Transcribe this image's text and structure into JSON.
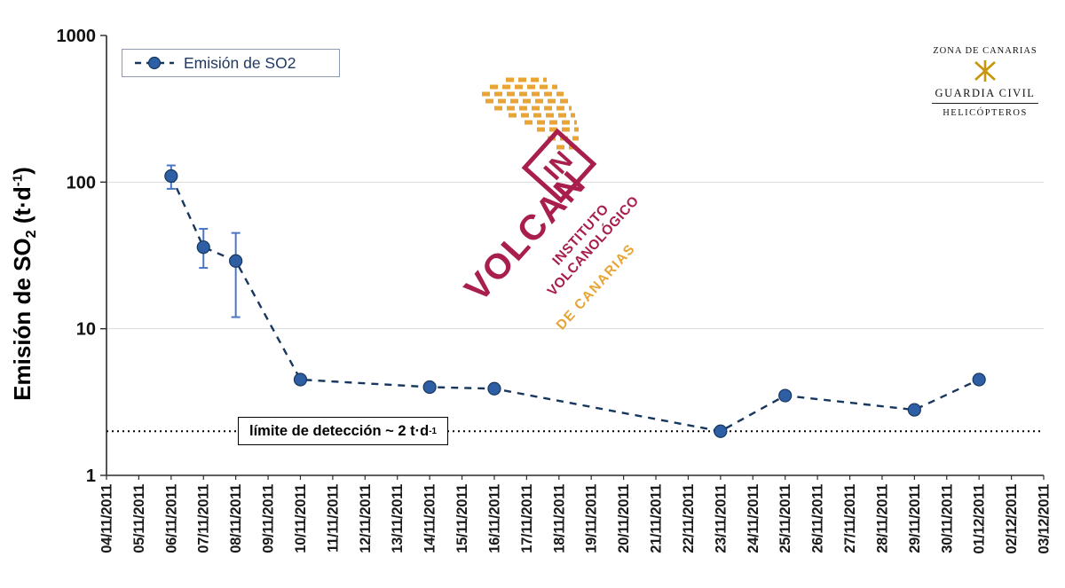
{
  "page": {
    "background": "#ffffff"
  },
  "y_axis": {
    "title_pre": "Emisión de SO",
    "title_sub": "2",
    "title_mid": " (t·d",
    "title_sup": "-1",
    "title_post": ")"
  },
  "legend": {
    "label": "Emisión de SO2"
  },
  "detection": {
    "label_pre": "límite de detección ~ 2 t·d",
    "label_sup": "-1"
  },
  "logo": {
    "in": "IN",
    "volcan": "VOLCAN",
    "inst_line1": "INSTITUTO",
    "inst_line2": "VOLCANOLÓGICO",
    "canarias": "DE CANARIAS",
    "crimson": "#A81E4D",
    "orange": "#E8A435"
  },
  "badge": {
    "zona": "ZONA DE CANARIAS",
    "guardia": "GUARDIA CIVIL",
    "helicopteros": "HELICÓPTEROS",
    "emblem_color": "#C8960C"
  },
  "chart_data": {
    "type": "line",
    "title": "",
    "xlabel": "",
    "ylabel": "Emisión de SO2 (t·d-1)",
    "y_scale": "log",
    "ylim": [
      1,
      1000
    ],
    "y_ticks": [
      "1",
      "10",
      "100",
      "1000"
    ],
    "gridlines": {
      "horizontal_at": [
        10,
        100
      ],
      "color": "#dcdcdc"
    },
    "legend_position": "top-left inside",
    "x_categories": [
      "04/11/2011",
      "05/11/2011",
      "06/11/2011",
      "07/11/2011",
      "08/11/2011",
      "09/11/2011",
      "10/11/2011",
      "11/11/2011",
      "12/11/2011",
      "13/11/2011",
      "14/11/2011",
      "15/11/2011",
      "16/11/2011",
      "17/11/2011",
      "18/11/2011",
      "19/11/2011",
      "20/11/2011",
      "21/11/2011",
      "22/11/2011",
      "23/11/2011",
      "24/11/2011",
      "25/11/2011",
      "26/11/2011",
      "27/11/2011",
      "28/11/2011",
      "29/11/2011",
      "30/11/2011",
      "01/12/2011",
      "02/12/2011",
      "03/12/2011"
    ],
    "series": [
      {
        "name": "Emisión de SO2",
        "line_style": "dashed",
        "line_color": "#17375e",
        "marker_color": "#2e5fa5",
        "errorbar_color": "#4a77c4",
        "points": [
          {
            "date": "06/11/2011",
            "value": 110,
            "err_low": 90,
            "err_high": 130
          },
          {
            "date": "07/11/2011",
            "value": 36,
            "err_low": 26,
            "err_high": 48
          },
          {
            "date": "08/11/2011",
            "value": 29,
            "err_low": 12,
            "err_high": 45
          },
          {
            "date": "10/11/2011",
            "value": 4.5
          },
          {
            "date": "14/11/2011",
            "value": 4.0
          },
          {
            "date": "16/11/2011",
            "value": 3.9
          },
          {
            "date": "23/11/2011",
            "value": 2.0
          },
          {
            "date": "25/11/2011",
            "value": 3.5
          },
          {
            "date": "29/11/2011",
            "value": 2.8
          },
          {
            "date": "01/12/2011",
            "value": 4.5
          }
        ]
      }
    ],
    "detection_limit": {
      "value": 2,
      "label": "límite de detección ~ 2 t·d-1",
      "line_style": "dotted",
      "line_color": "#000000"
    }
  }
}
